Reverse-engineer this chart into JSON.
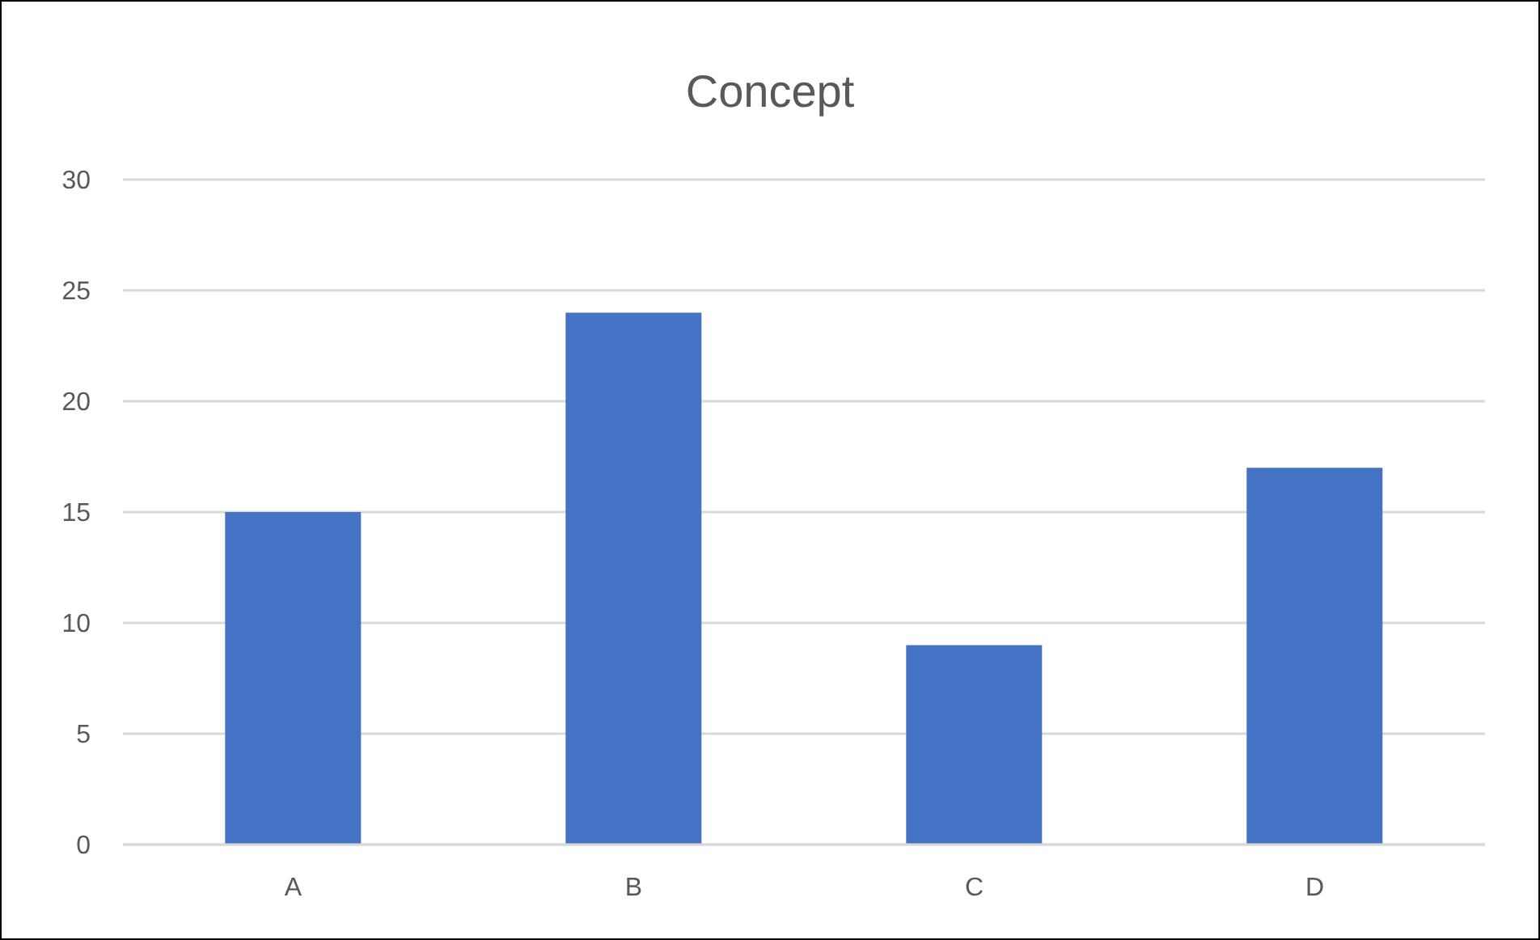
{
  "chart_data": {
    "type": "bar",
    "title": "Concept",
    "categories": [
      "A",
      "B",
      "C",
      "D"
    ],
    "values": [
      15,
      24,
      9,
      17
    ],
    "color": "#4472c4",
    "ylim": [
      0,
      30
    ],
    "yticks": [
      0,
      5,
      10,
      15,
      20,
      25,
      30
    ],
    "grid": "y"
  }
}
